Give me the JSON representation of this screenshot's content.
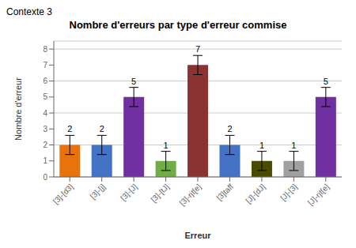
{
  "chart_data": {
    "type": "bar",
    "title": "Nombre d'erreurs par type d'erreur commise",
    "subtitle": "Contexte 3",
    "xlabel": "Erreur",
    "ylabel": "Nombre d'erreur",
    "categories": [
      "[3]-[d3]",
      "[3]-[j]",
      "[3]-[J]",
      "[3]-[tJ]",
      "[3]-rjt[e]",
      "[3]taff",
      "[J]-[dJ]",
      "[J]-[3]",
      "[J]-rjt[e]"
    ],
    "values": [
      2,
      2,
      5,
      1,
      7,
      2,
      1,
      1,
      5
    ],
    "errors": [
      0.6,
      0.6,
      0.6,
      0.6,
      0.6,
      0.6,
      0.6,
      0.6,
      0.6
    ],
    "colors": [
      "#E8720C",
      "#4472C4",
      "#7030A0",
      "#70AD47",
      "#8B3333",
      "#4472C4",
      "#4B4B00",
      "#A0A0A0",
      "#7030A0"
    ],
    "ylim": [
      0,
      8.5
    ],
    "yticks": [
      0,
      1,
      2,
      3,
      4,
      5,
      6,
      7,
      8
    ],
    "grid": true,
    "data_labels": true
  }
}
